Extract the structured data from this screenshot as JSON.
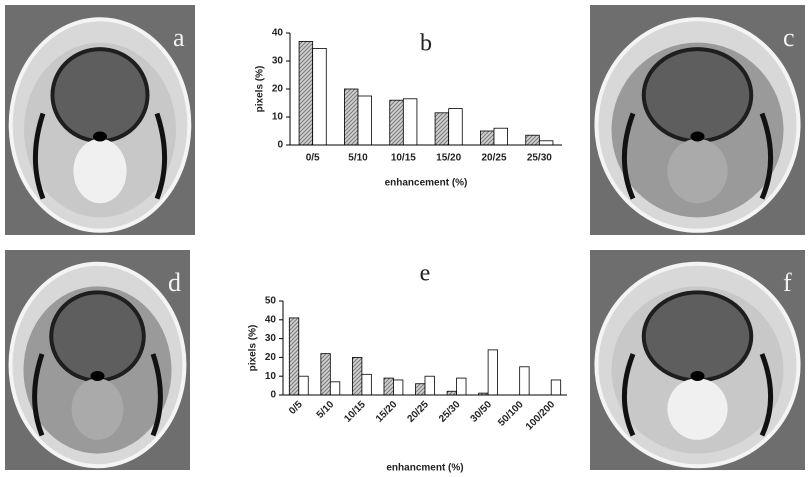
{
  "panels": [
    {
      "label": "a"
    },
    {
      "label": "c"
    },
    {
      "label": "d"
    },
    {
      "label": "f"
    }
  ],
  "chart_data": [
    {
      "type": "bar",
      "title": "b",
      "x_label": "enhancement (%)",
      "y_label": "pixels (%)",
      "categories": [
        "0/5",
        "5/10",
        "10/15",
        "15/20",
        "20/25",
        "25/30"
      ],
      "series": [
        {
          "color": "#7a7a7a",
          "hatch": true,
          "values": [
            37,
            20,
            16,
            11.5,
            5,
            3.5
          ]
        },
        {
          "color": "#ffffff",
          "hatch": false,
          "values": [
            34.5,
            17.5,
            16.5,
            13,
            6,
            1.5
          ]
        }
      ],
      "ylim": [
        0,
        40
      ],
      "yticks": [
        0,
        10,
        20,
        30,
        40
      ],
      "grid": false
    },
    {
      "type": "bar",
      "title": "e",
      "x_label": "enhancment (%)",
      "y_label": "pixels (%)",
      "categories": [
        "0/5",
        "5/10",
        "10/15",
        "15/20",
        "20/25",
        "25/30",
        "30/50",
        "50/100",
        "100/200"
      ],
      "series": [
        {
          "color": "#7a7a7a",
          "hatch": true,
          "values": [
            41,
            22,
            20,
            9,
            6,
            2,
            1,
            0,
            0
          ]
        },
        {
          "color": "#ffffff",
          "hatch": false,
          "values": [
            10,
            7,
            11,
            8,
            10,
            9,
            24,
            15,
            8
          ]
        }
      ],
      "ylim": [
        0,
        50
      ],
      "yticks": [
        0,
        10,
        20,
        30,
        40,
        50
      ],
      "grid": false
    }
  ]
}
